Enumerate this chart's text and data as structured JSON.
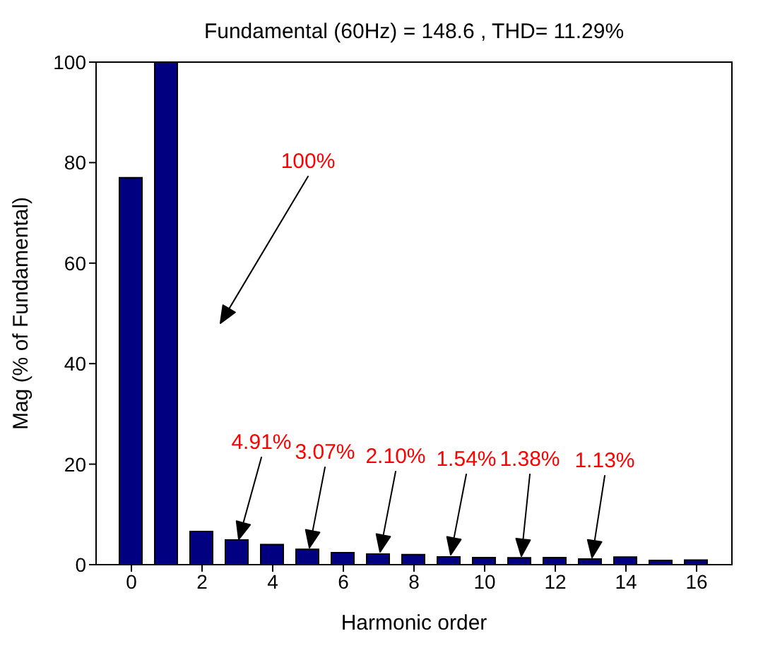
{
  "chart_data": {
    "type": "bar",
    "title": "Fundamental (60Hz) = 148.6 , THD= 11.29%",
    "xlabel": "Harmonic order",
    "ylabel": "Mag (% of Fundamental)",
    "x": [
      0,
      1,
      2,
      3,
      4,
      5,
      6,
      7,
      8,
      9,
      10,
      11,
      12,
      13,
      14,
      15,
      16
    ],
    "values": [
      77,
      100,
      6.6,
      4.91,
      4.0,
      3.07,
      2.4,
      2.1,
      2.0,
      1.54,
      1.4,
      1.38,
      1.4,
      1.13,
      1.5,
      0.85,
      0.9
    ],
    "color": "#000080",
    "xlim": [
      -1,
      17
    ],
    "xticks": [
      0,
      2,
      4,
      6,
      8,
      10,
      12,
      14,
      16
    ],
    "ylim": [
      0,
      100
    ],
    "yticks": [
      0,
      20,
      40,
      60,
      80,
      100
    ],
    "grid": false,
    "annotations": [
      "100%",
      "4.91%",
      "3.07%",
      "2.10%",
      "1.54%",
      "1.38%",
      "1.13%"
    ]
  }
}
